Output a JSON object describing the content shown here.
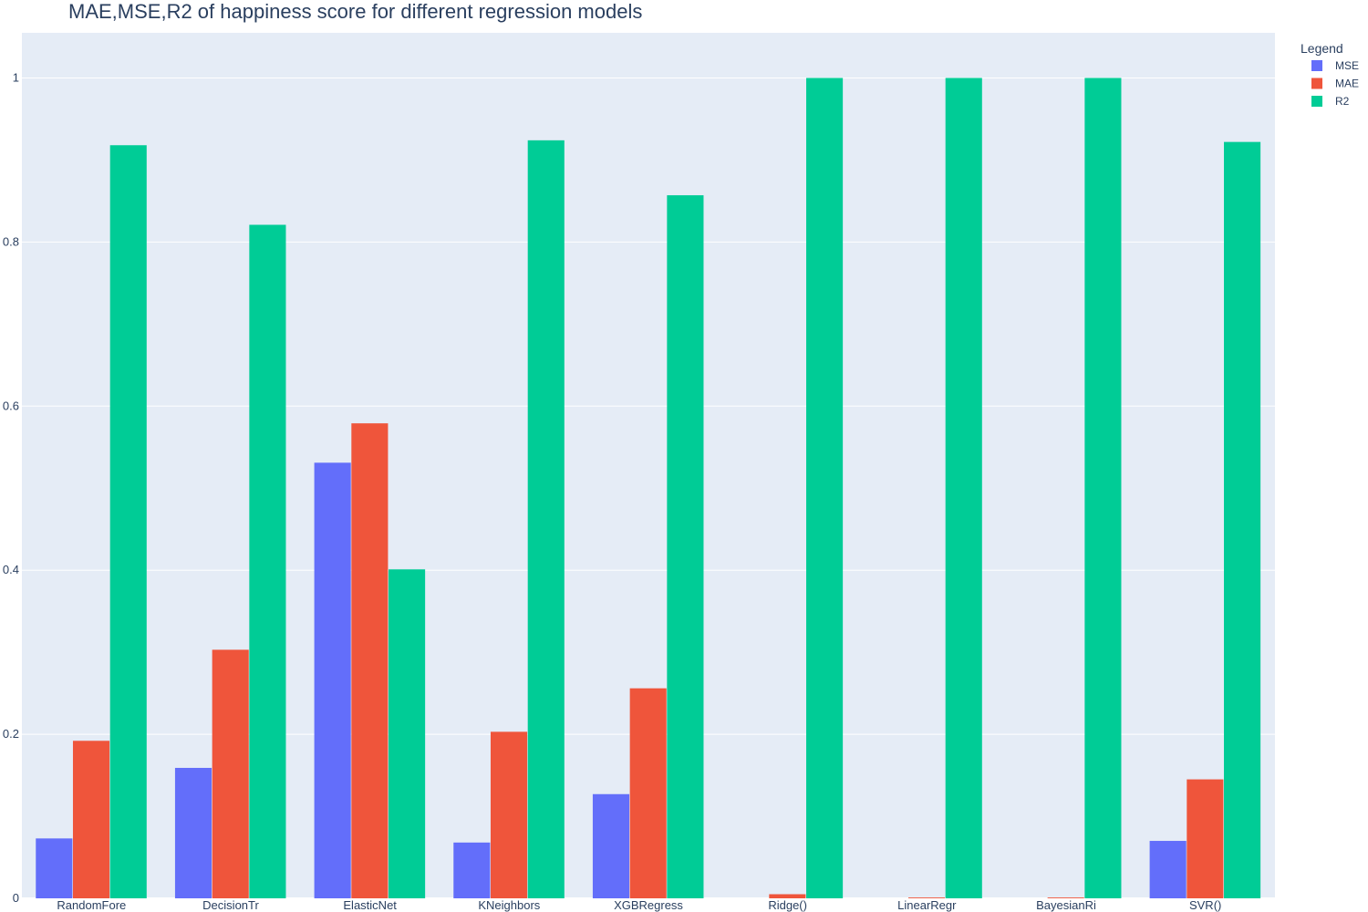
{
  "chart_data": {
    "type": "bar",
    "title": "MAE,MSE,R2 of happiness score for different regression models",
    "xlabel": "",
    "ylabel": "",
    "ylim": [
      0,
      1.055
    ],
    "yticks": [
      0,
      0.2,
      0.4,
      0.6,
      0.8,
      1
    ],
    "ytick_labels": [
      "0",
      "0.2",
      "0.4",
      "0.6",
      "0.8",
      "1"
    ],
    "categories": [
      "RandomFore",
      "DecisionTr",
      "ElasticNet",
      "KNeighbors",
      "XGBRegress",
      "Ridge()",
      "LinearRegr",
      "BayesianRi",
      "SVR()"
    ],
    "legend": {
      "title": "Legend",
      "position": "top-right"
    },
    "grid": true,
    "series": [
      {
        "name": "MSE",
        "color": "#636efa",
        "values": [
          0.073,
          0.159,
          0.531,
          0.068,
          0.127,
          0.0,
          0.0,
          0.0,
          0.07
        ]
      },
      {
        "name": "MAE",
        "color": "#ef553b",
        "values": [
          0.192,
          0.303,
          0.579,
          0.203,
          0.256,
          0.005,
          0.001,
          0.001,
          0.145
        ]
      },
      {
        "name": "R2",
        "color": "#00cc96",
        "values": [
          0.918,
          0.821,
          0.401,
          0.924,
          0.857,
          1.0,
          1.0,
          1.0,
          0.922
        ]
      }
    ],
    "colors": {
      "plot_bg": "#e5ecf6",
      "grid": "#ffffff",
      "text": "#2a3f5f"
    }
  }
}
